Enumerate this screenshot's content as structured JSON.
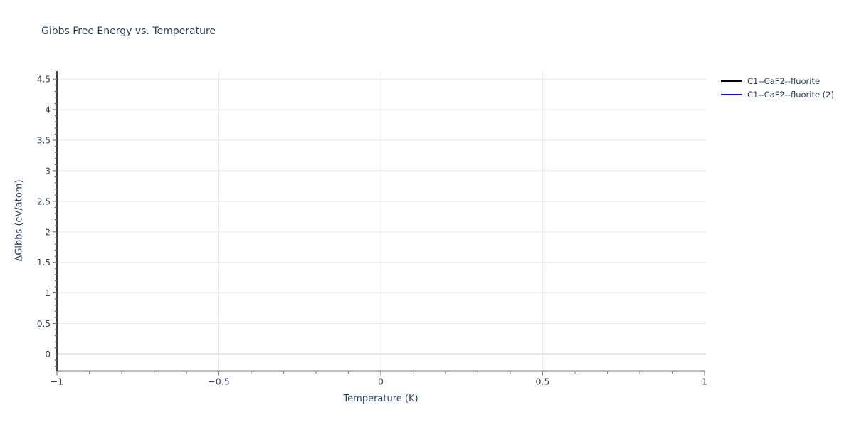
{
  "chart_data": {
    "type": "line",
    "title": "Gibbs Free Energy vs. Temperature",
    "xlabel": "Temperature (K)",
    "ylabel": "ΔGibbs (eV/atom)",
    "grid": true,
    "legend_position": "top-right-outside",
    "x_axis": {
      "range": [
        -1,
        1
      ],
      "major_ticks": [
        -1,
        -0.5,
        0,
        0.5,
        1
      ],
      "tick_labels": [
        "−1",
        "−0.5",
        "0",
        "0.5",
        "1"
      ],
      "minor_tick_step": 0.1,
      "gridline_ticks": [
        -0.5,
        0,
        0.5
      ]
    },
    "y_axis": {
      "range": [
        -0.28,
        4.63
      ],
      "major_ticks": [
        0,
        0.5,
        1,
        1.5,
        2,
        2.5,
        3,
        3.5,
        4,
        4.5
      ],
      "tick_labels": [
        "0",
        "0.5",
        "1",
        "1.5",
        "2",
        "2.5",
        "3",
        "3.5",
        "4",
        "4.5"
      ],
      "minor_tick_step": 0.1,
      "zeroline": 0
    },
    "series": [
      {
        "name": "C1--CaF2--fluorite",
        "color": "#000000",
        "x": [],
        "y": []
      },
      {
        "name": "C1--CaF2--fluorite (2)",
        "color": "#1414ff",
        "x": [],
        "y": []
      }
    ]
  },
  "colors": {
    "text": "#2a3f5f",
    "gridline": "#e8e8e8",
    "zeroline": "#d6d6d6",
    "axis_line": "#000000",
    "tick_mark": "#808080",
    "background": "#ffffff"
  }
}
